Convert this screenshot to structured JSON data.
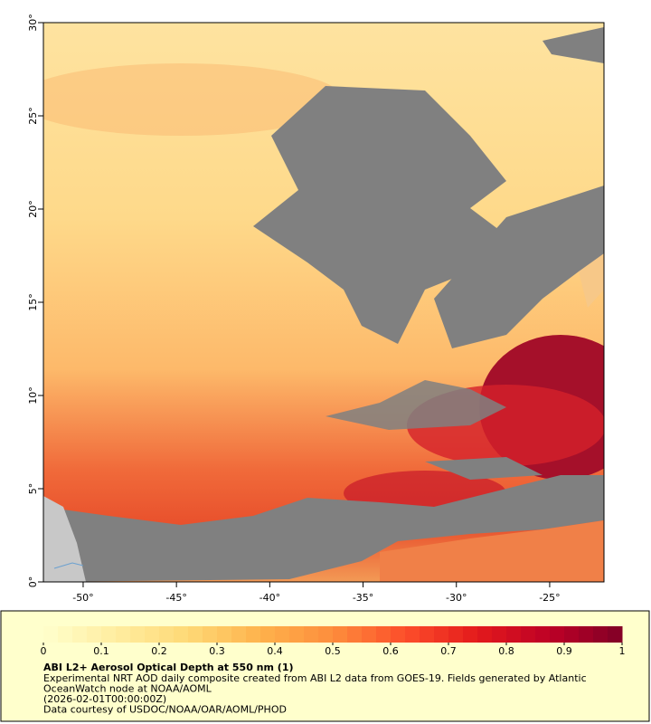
{
  "map": {
    "lonlim": [
      -52.13,
      -22.09
    ],
    "latlim": [
      0,
      30
    ],
    "lon_ticks": [
      {
        "value": -50,
        "label": "-50°"
      },
      {
        "value": -45,
        "label": "-45°"
      },
      {
        "value": -40,
        "label": "-40°"
      },
      {
        "value": -35,
        "label": "-35°"
      },
      {
        "value": -30,
        "label": "-30°"
      },
      {
        "value": -25,
        "label": "-25°"
      }
    ],
    "lat_ticks": [
      {
        "value": 0,
        "label": "0°"
      },
      {
        "value": 5,
        "label": "5°"
      },
      {
        "value": 10,
        "label": "10°"
      },
      {
        "value": 15,
        "label": "15°"
      },
      {
        "value": 20,
        "label": "20°"
      },
      {
        "value": 25,
        "label": "25°"
      },
      {
        "value": 30,
        "label": "30°"
      }
    ]
  },
  "legend": {
    "range": [
      0,
      1
    ],
    "ticks": [
      0,
      0.1,
      0.2,
      0.3,
      0.4,
      0.5,
      0.6,
      0.7,
      0.8,
      0.9,
      1
    ],
    "colors": [
      "#ffffcc",
      "#ffeda0",
      "#fed976",
      "#feb24c",
      "#fd8d3c",
      "#fc4e2a",
      "#e31a1c",
      "#bd0026",
      "#800026"
    ]
  },
  "caption": {
    "title": "ABI L2+ Aerosol Optical Depth at 550 nm (1)",
    "lines": [
      "Experimental NRT AOD daily composite created from ABI L2 data from GOES-19. Fields generated by Atlantic",
      "OceanWatch node at NOAA/AOML",
      "(2026-02-01T00:00:00Z)",
      "Data courtesy of USDOC/NOAA/OAR/AOML/PHOD"
    ]
  }
}
